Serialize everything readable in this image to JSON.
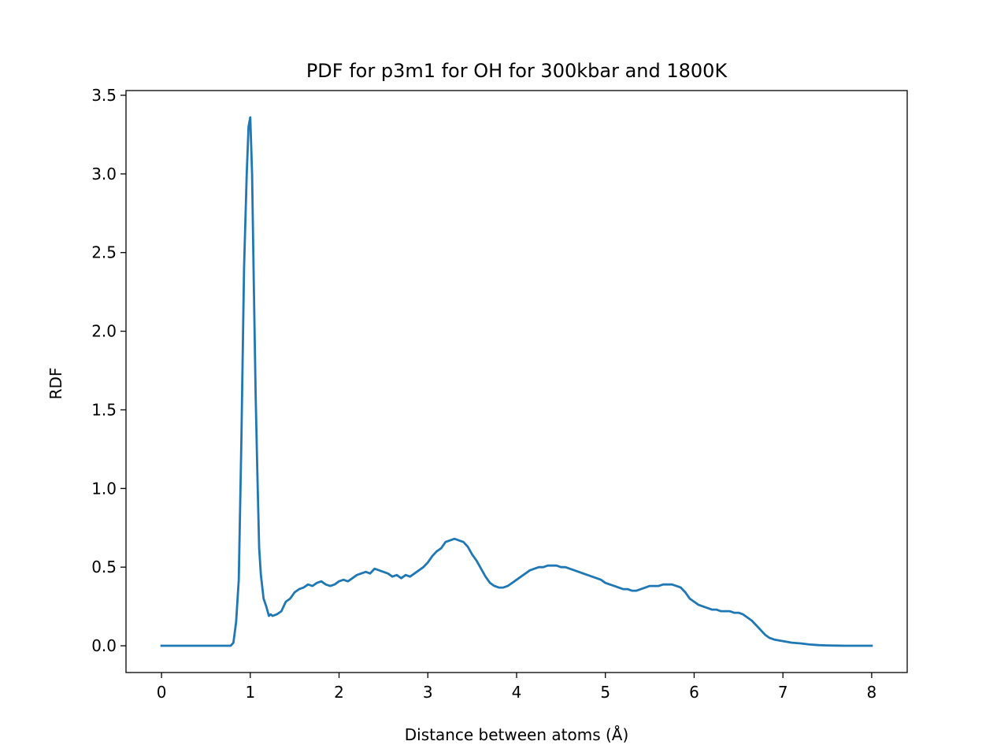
{
  "chart_data": {
    "type": "line",
    "title": "PDF for p3m1 for OH for 300kbar and 1800K",
    "xlabel": "Distance between atoms (Å)",
    "ylabel": "RDF",
    "xlim": [
      -0.4,
      8.4
    ],
    "ylim": [
      -0.17,
      3.53
    ],
    "xticks": [
      0,
      1,
      2,
      3,
      4,
      5,
      6,
      7,
      8
    ],
    "xtick_labels": [
      "0",
      "1",
      "2",
      "3",
      "4",
      "5",
      "6",
      "7",
      "8"
    ],
    "yticks": [
      0.0,
      0.5,
      1.0,
      1.5,
      2.0,
      2.5,
      3.0,
      3.5
    ],
    "ytick_labels": [
      "0.0",
      "0.5",
      "1.0",
      "1.5",
      "2.0",
      "2.5",
      "3.0",
      "3.5"
    ],
    "grid": false,
    "line_color": "#1f77b4",
    "series": [
      {
        "x": [
          0.0,
          0.3,
          0.6,
          0.78,
          0.81,
          0.84,
          0.87,
          0.9,
          0.93,
          0.96,
          0.98,
          1.0,
          1.02,
          1.04,
          1.06,
          1.08,
          1.1,
          1.12,
          1.15,
          1.18,
          1.21,
          1.23,
          1.25,
          1.3,
          1.35,
          1.4,
          1.45,
          1.5,
          1.55,
          1.6,
          1.65,
          1.7,
          1.75,
          1.8,
          1.85,
          1.9,
          1.95,
          2.0,
          2.05,
          2.1,
          2.15,
          2.2,
          2.25,
          2.3,
          2.35,
          2.4,
          2.45,
          2.5,
          2.55,
          2.6,
          2.65,
          2.7,
          2.75,
          2.8,
          2.85,
          2.9,
          2.95,
          3.0,
          3.05,
          3.1,
          3.15,
          3.2,
          3.25,
          3.3,
          3.35,
          3.4,
          3.45,
          3.5,
          3.55,
          3.6,
          3.65,
          3.7,
          3.75,
          3.8,
          3.85,
          3.9,
          3.95,
          4.0,
          4.05,
          4.1,
          4.15,
          4.2,
          4.25,
          4.3,
          4.35,
          4.4,
          4.45,
          4.5,
          4.55,
          4.6,
          4.65,
          4.7,
          4.75,
          4.8,
          4.85,
          4.9,
          4.95,
          5.0,
          5.05,
          5.1,
          5.15,
          5.2,
          5.25,
          5.3,
          5.35,
          5.4,
          5.45,
          5.5,
          5.55,
          5.6,
          5.65,
          5.7,
          5.75,
          5.8,
          5.85,
          5.9,
          5.95,
          6.0,
          6.05,
          6.1,
          6.15,
          6.2,
          6.25,
          6.3,
          6.35,
          6.4,
          6.45,
          6.5,
          6.55,
          6.6,
          6.65,
          6.7,
          6.75,
          6.8,
          6.85,
          6.9,
          6.95,
          7.0,
          7.1,
          7.2,
          7.3,
          7.4,
          7.5,
          7.6,
          7.7,
          7.8,
          7.9,
          8.0
        ],
        "y": [
          0.0,
          0.0,
          0.0,
          0.0,
          0.02,
          0.15,
          0.42,
          1.3,
          2.4,
          3.0,
          3.3,
          3.36,
          3.0,
          2.3,
          1.6,
          1.1,
          0.62,
          0.45,
          0.3,
          0.25,
          0.19,
          0.2,
          0.19,
          0.2,
          0.22,
          0.28,
          0.3,
          0.34,
          0.36,
          0.37,
          0.39,
          0.38,
          0.4,
          0.41,
          0.39,
          0.38,
          0.39,
          0.41,
          0.42,
          0.41,
          0.43,
          0.45,
          0.46,
          0.47,
          0.46,
          0.49,
          0.48,
          0.47,
          0.46,
          0.44,
          0.45,
          0.43,
          0.45,
          0.44,
          0.46,
          0.48,
          0.5,
          0.53,
          0.57,
          0.6,
          0.62,
          0.66,
          0.67,
          0.68,
          0.67,
          0.66,
          0.63,
          0.58,
          0.54,
          0.49,
          0.44,
          0.4,
          0.38,
          0.37,
          0.37,
          0.38,
          0.4,
          0.42,
          0.44,
          0.46,
          0.48,
          0.49,
          0.5,
          0.5,
          0.51,
          0.51,
          0.51,
          0.5,
          0.5,
          0.49,
          0.48,
          0.47,
          0.46,
          0.45,
          0.44,
          0.43,
          0.42,
          0.4,
          0.39,
          0.38,
          0.37,
          0.36,
          0.36,
          0.35,
          0.35,
          0.36,
          0.37,
          0.38,
          0.38,
          0.38,
          0.39,
          0.39,
          0.39,
          0.38,
          0.37,
          0.34,
          0.3,
          0.28,
          0.26,
          0.25,
          0.24,
          0.23,
          0.23,
          0.22,
          0.22,
          0.22,
          0.21,
          0.21,
          0.2,
          0.18,
          0.16,
          0.13,
          0.1,
          0.07,
          0.05,
          0.04,
          0.035,
          0.03,
          0.02,
          0.015,
          0.008,
          0.004,
          0.002,
          0.001,
          0.0,
          0.0,
          0.0,
          0.0
        ]
      }
    ]
  }
}
